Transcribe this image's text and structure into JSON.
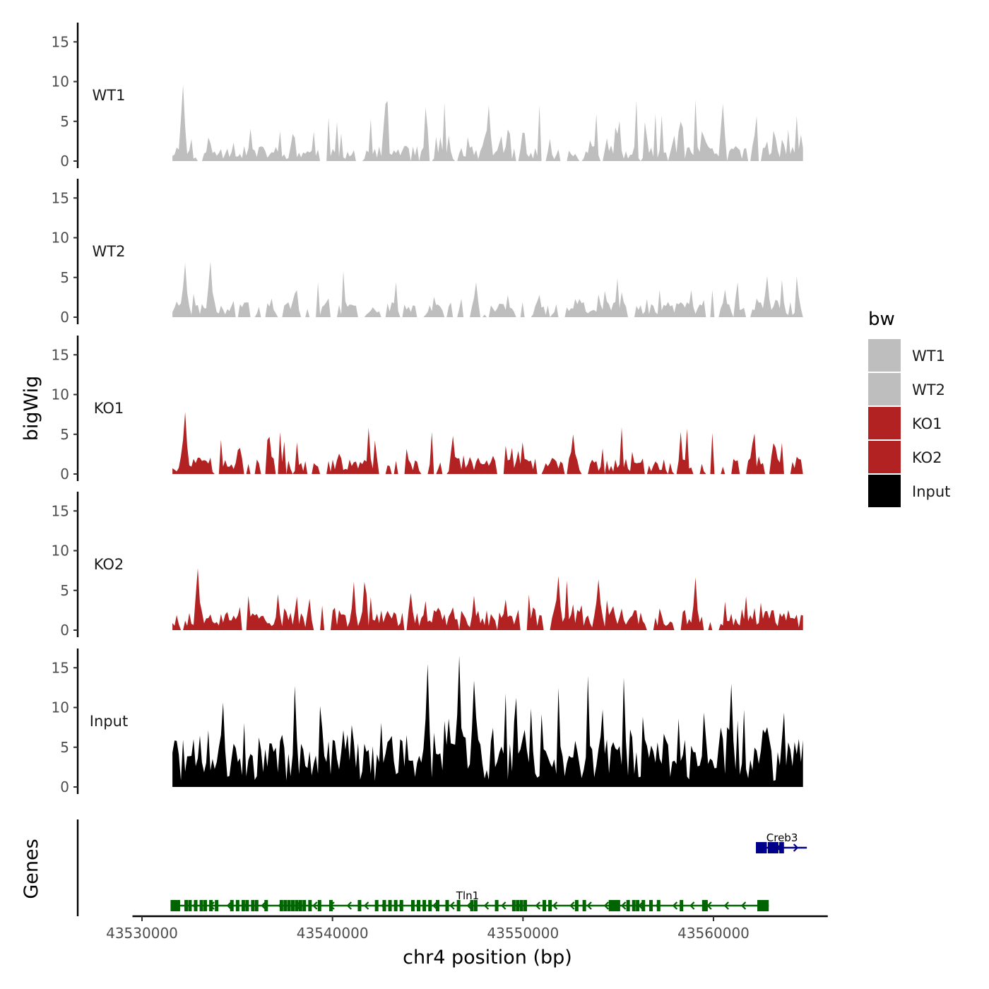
{
  "chart_data": {
    "type": "area",
    "xlabel": "chr4 position (bp)",
    "ylabel": "bigWig",
    "genes_ylabel": "Genes",
    "xlim": [
      43529500,
      43566000
    ],
    "signal_range": [
      43531600,
      43564700
    ],
    "x_ticks": [
      {
        "value": 43530000,
        "label": "43530000"
      },
      {
        "value": 43540000,
        "label": "43540000"
      },
      {
        "value": 43550000,
        "label": "43550000"
      },
      {
        "value": 43560000,
        "label": "43560000"
      }
    ],
    "ylim": [
      0,
      17
    ],
    "y_ticks": [
      {
        "value": 0,
        "label": "0"
      },
      {
        "value": 5,
        "label": "5"
      },
      {
        "value": 10,
        "label": "10"
      },
      {
        "value": 15,
        "label": "15"
      }
    ],
    "series": [
      {
        "name": "WT1",
        "color": "#bebebe",
        "seed": 11,
        "base": 1.2,
        "peak": 10.0,
        "gap": 0.1,
        "peaks": [
          {
            "x": 43532100,
            "y": 9.6
          },
          {
            "x": 43542800,
            "y": 7.2
          },
          {
            "x": 43548200,
            "y": 7.0
          },
          {
            "x": 43560500,
            "y": 7.2
          }
        ]
      },
      {
        "name": "WT2",
        "color": "#bebebe",
        "seed": 23,
        "base": 1.2,
        "peak": 7.0,
        "gap": 0.1,
        "peaks": [
          {
            "x": 43532300,
            "y": 6.8
          },
          {
            "x": 43533600,
            "y": 7.0
          },
          {
            "x": 43547500,
            "y": 4.4
          },
          {
            "x": 43562800,
            "y": 5.2
          }
        ]
      },
      {
        "name": "KO1",
        "color": "#b22222",
        "seed": 37,
        "base": 1.3,
        "peak": 7.8,
        "gap": 0.14,
        "peaks": [
          {
            "x": 43532300,
            "y": 7.8
          },
          {
            "x": 43546300,
            "y": 4.8
          },
          {
            "x": 43552600,
            "y": 5.0
          }
        ]
      },
      {
        "name": "KO2",
        "color": "#b22222",
        "seed": 53,
        "base": 1.6,
        "peak": 7.8,
        "gap": 0.06,
        "peaks": [
          {
            "x": 43532900,
            "y": 7.8
          },
          {
            "x": 43551900,
            "y": 6.8
          },
          {
            "x": 43554000,
            "y": 6.4
          }
        ]
      },
      {
        "name": "Input",
        "color": "#000000",
        "seed": 71,
        "base": 3.8,
        "peak": 16.5,
        "gap": 0,
        "peaks": [
          {
            "x": 43545000,
            "y": 15.5
          },
          {
            "x": 43546700,
            "y": 16.5
          },
          {
            "x": 43547400,
            "y": 13.4
          },
          {
            "x": 43560900,
            "y": 13.0
          }
        ]
      }
    ],
    "legend": {
      "title": "bw",
      "entries": [
        {
          "label": "WT1",
          "color": "#bebebe"
        },
        {
          "label": "WT2",
          "color": "#bebebe"
        },
        {
          "label": "KO1",
          "color": "#b22222"
        },
        {
          "label": "KO2",
          "color": "#b22222"
        },
        {
          "label": "Input",
          "color": "#000000"
        }
      ]
    },
    "genes": [
      {
        "name": "Creb3",
        "color": "#00008b",
        "strand": "+",
        "start": 43562300,
        "end": 43564900,
        "exons": [
          [
            43562400,
            43562800
          ],
          [
            43562850,
            43563400
          ],
          [
            43563450,
            43563700
          ]
        ],
        "small_exons": [
          43562300,
          43563150,
          43563300
        ]
      },
      {
        "name": "Tln1",
        "color": "#006400",
        "strand": "-",
        "start": 43531500,
        "end": 43562900,
        "exons": [
          [
            43531500,
            43532000
          ],
          [
            43554500,
            43555100
          ],
          [
            43559400,
            43559700
          ],
          [
            43562300,
            43562900
          ]
        ],
        "small_exons": [
          43532300,
          43532500,
          43532800,
          43533100,
          43533300,
          43533600,
          43533900,
          43534700,
          43535000,
          43535300,
          43535500,
          43535800,
          43536000,
          43536500,
          43537300,
          43537500,
          43537700,
          43537900,
          43538100,
          43538300,
          43538500,
          43538800,
          43539300,
          43539900,
          43541400,
          43542300,
          43542700,
          43543000,
          43543300,
          43543600,
          43544200,
          43544500,
          43544800,
          43545100,
          43545500,
          43546000,
          43546600,
          43547300,
          43547500,
          43548600,
          43549500,
          43549700,
          43549900,
          43550100,
          43551100,
          43551400,
          43552800,
          43553200,
          43555500,
          43555800,
          43556000,
          43556300,
          43556700,
          43557100,
          43558300
        ]
      }
    ]
  }
}
